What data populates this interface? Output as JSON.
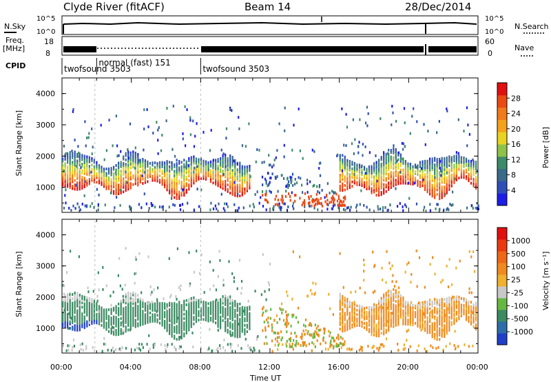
{
  "header": {
    "station": "Clyde River (fitACF)",
    "beam": "Beam 14",
    "date": "28/Dec/2014"
  },
  "top_panels": {
    "nsky_label": "N.Sky",
    "nsky_scale_top": "10^5",
    "nsky_scale_bottom": "10^0",
    "nsearch_label": "N.Search",
    "freq_label_line1": "Freq.",
    "freq_label_line2": "[MHz]",
    "freq_scale_top": "18",
    "freq_scale_bottom": "8",
    "nave_label": "Nave",
    "nave_scale_top": "60",
    "nave_scale_bottom": "0",
    "cpid_label": "CPID",
    "cpid_segments": [
      {
        "name": "twofsound 3503",
        "start_hour": 0.0,
        "end_hour": 2.0
      },
      {
        "name": "normal (fast) 151",
        "start_hour": 2.0,
        "end_hour": 8.0
      },
      {
        "name": "twofsound 3503",
        "start_hour": 8.0,
        "end_hour": 24.0
      }
    ]
  },
  "axes": {
    "x_label": "Time UT",
    "x_ticks": [
      "00:00",
      "04:00",
      "08:00",
      "12:00",
      "16:00",
      "20:00",
      "00:00"
    ],
    "y_label": "Slant Range [km]",
    "y_ticks": [
      "1000",
      "2000",
      "3000",
      "4000"
    ],
    "y_range_km": [
      200,
      4500
    ],
    "x_range_hours": [
      0,
      24
    ]
  },
  "power_colorbar": {
    "title": "Power [dB]",
    "tick_labels": [
      "4",
      "8",
      "12",
      "16",
      "20",
      "24",
      "28"
    ],
    "colors": [
      "#1e1ee6",
      "#2f4fb7",
      "#3a6a8a",
      "#3f8a6a",
      "#8fc24a",
      "#e8d222",
      "#f4a21c",
      "#f07a1c",
      "#ea4a14",
      "#e01010"
    ]
  },
  "velocity_colorbar": {
    "title": "Velocity [m s⁻¹]",
    "tick_labels": [
      "1000",
      "500",
      "100",
      "25",
      "-25",
      "-100",
      "-500",
      "-1000"
    ],
    "colors": [
      "#2040c8",
      "#2e6ea8",
      "#3c8a62",
      "#66b840",
      "#c8c8c8",
      "#f0b030",
      "#f08a20",
      "#ee6818",
      "#ea3a12",
      "#e01010"
    ]
  },
  "colors": {
    "echo_red": "#e0200f",
    "echo_orange": "#f07a1c",
    "echo_green": "#3f8a6a",
    "echo_blue": "#2f4fb7",
    "velocity_green": "#3c8a62",
    "velocity_orange": "#f08a20",
    "velocity_gray": "#c8c8c8"
  }
}
